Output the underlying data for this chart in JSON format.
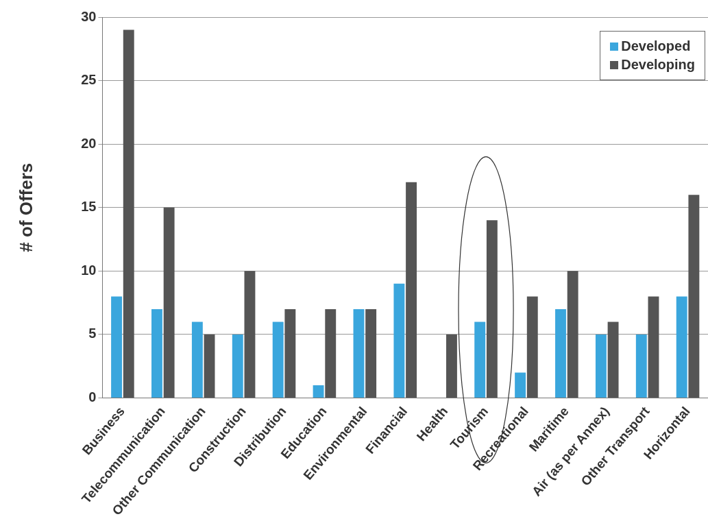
{
  "chart_data": {
    "type": "bar",
    "ylabel": "# of Offers",
    "categories": [
      "Business",
      "Telecommunication",
      "Other Communication",
      "Construction",
      "Distribution",
      "Education",
      "Environmental",
      "Financial",
      "Health",
      "Tourism",
      "Recreational",
      "Maritime",
      "Air (as per Annex)",
      "Other Transport",
      "Horizontal"
    ],
    "series": [
      {
        "name": "Developed",
        "color": "#3aa6dd",
        "values": [
          8,
          7,
          6,
          5,
          6,
          1,
          7,
          9,
          0,
          6,
          2,
          7,
          5,
          5,
          8
        ]
      },
      {
        "name": "Developing",
        "color": "#555555",
        "values": [
          29,
          15,
          5,
          10,
          7,
          7,
          7,
          17,
          5,
          14,
          8,
          10,
          6,
          8,
          16
        ]
      }
    ],
    "ylim": [
      0,
      30
    ],
    "yticks": [
      0,
      5,
      10,
      15,
      20,
      25,
      30
    ],
    "grid": "y",
    "legend": "top right"
  }
}
